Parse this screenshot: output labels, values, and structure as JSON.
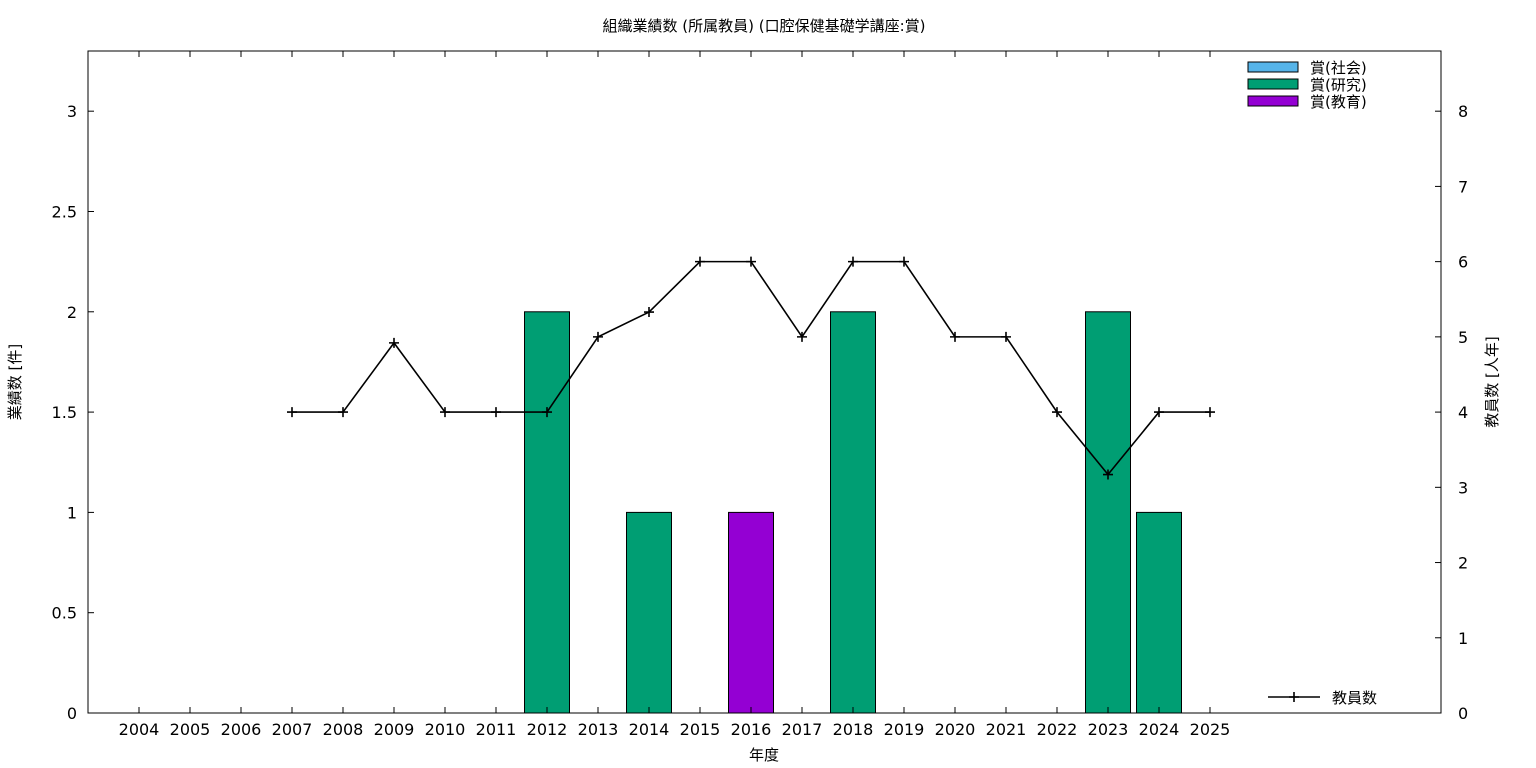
{
  "chart_data": {
    "type": "bar",
    "title": "組織業績数 (所属教員) (口腔保健基礎学講座:賞)",
    "xlabel": "年度",
    "ylabel": "業績数 [件]",
    "y2label": "教員数 [人年]",
    "categories": [
      "2004",
      "2005",
      "2006",
      "2007",
      "2008",
      "2009",
      "2010",
      "2011",
      "2012",
      "2013",
      "2014",
      "2015",
      "2016",
      "2017",
      "2018",
      "2019",
      "2020",
      "2021",
      "2022",
      "2023",
      "2024",
      "2025"
    ],
    "ylim": [
      0,
      3.3
    ],
    "yticks": [
      "0",
      "0.5",
      "1",
      "1.5",
      "2",
      "2.5",
      "3"
    ],
    "y2lim": [
      0,
      8.8
    ],
    "y2ticks": [
      "0",
      "1",
      "2",
      "3",
      "4",
      "5",
      "6",
      "7",
      "8"
    ],
    "grid": false,
    "legend_position": "top-right",
    "series": [
      {
        "name": "賞(社会)",
        "color": "#56b4e9",
        "values": [
          0,
          0,
          0,
          0,
          0,
          0,
          0,
          0,
          0,
          0,
          0,
          0,
          0,
          0,
          0,
          0,
          0,
          0,
          0,
          0,
          0,
          0
        ]
      },
      {
        "name": "賞(研究)",
        "color": "#009e73",
        "values": [
          0,
          0,
          0,
          0,
          0,
          0,
          0,
          0,
          2,
          0,
          1,
          0,
          0,
          0,
          2,
          0,
          0,
          0,
          0,
          2,
          1,
          0
        ]
      },
      {
        "name": "賞(教育)",
        "color": "#9400d3",
        "values": [
          0,
          0,
          0,
          0,
          0,
          0,
          0,
          0,
          0,
          0,
          0,
          0,
          1,
          0,
          0,
          0,
          0,
          0,
          0,
          0,
          0,
          0
        ]
      }
    ],
    "line_series": {
      "name": "教員数",
      "color": "#000000",
      "axis": "y2",
      "legend_position": "bottom-right",
      "categories": [
        "2007",
        "2008",
        "2009",
        "2010",
        "2011",
        "2012",
        "2013",
        "2014",
        "2015",
        "2016",
        "2017",
        "2018",
        "2019",
        "2020",
        "2021",
        "2022",
        "2023",
        "2024",
        "2025"
      ],
      "values": [
        4,
        4,
        4.92,
        4,
        4,
        4,
        5,
        5.33,
        6,
        6,
        5,
        6,
        6,
        5,
        5,
        4,
        3.17,
        4,
        4
      ]
    }
  }
}
